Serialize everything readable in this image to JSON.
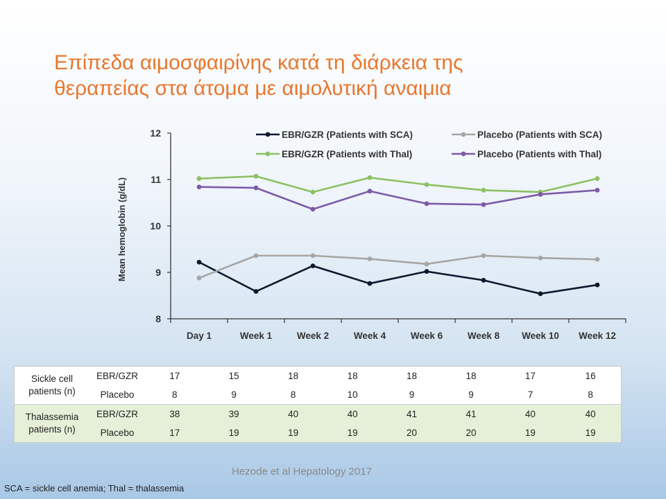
{
  "title_line1": "Επίπεδα αιμοσφαιρίνης κατά τη διάρκεια της",
  "title_line2": "θεραπείας στα άτομα με αιμολυτική αναιμια",
  "chart_data": {
    "type": "line",
    "ylabel": "Mean hemoglobin (g/dL)",
    "xlabel": "",
    "ylim": [
      8,
      12
    ],
    "yticks": [
      "8",
      "9",
      "10",
      "11",
      "12"
    ],
    "categories": [
      "Day 1",
      "Week 1",
      "Week 2",
      "Week 4",
      "Week 6",
      "Week 8",
      "Week 10",
      "Week 12"
    ],
    "legend_position": "top",
    "series": [
      {
        "name": "EBR/GZR (Patients with SCA)",
        "color": "#0d1a2e",
        "values": [
          9.22,
          8.59,
          9.14,
          8.76,
          9.02,
          8.83,
          8.54,
          8.73
        ]
      },
      {
        "name": "Placebo (Patients with SCA)",
        "color": "#a6a6a6",
        "values": [
          8.88,
          9.36,
          9.36,
          9.29,
          9.18,
          9.36,
          9.31,
          9.28
        ]
      },
      {
        "name": "EBR/GZR (Patients with Thal)",
        "color": "#8dc063",
        "values": [
          11.02,
          11.07,
          10.73,
          11.04,
          10.89,
          10.77,
          10.73,
          11.02
        ]
      },
      {
        "name": "Placebo (Patients with Thal)",
        "color": "#7e5aa8",
        "values": [
          10.84,
          10.82,
          10.36,
          10.75,
          10.48,
          10.46,
          10.68,
          10.77
        ]
      }
    ]
  },
  "table": {
    "groups": [
      {
        "label": "Sickle cell patients (n)",
        "rows": [
          {
            "treatment": "EBR/GZR",
            "values": [
              "17",
              "15",
              "18",
              "18",
              "18",
              "18",
              "17",
              "16"
            ]
          },
          {
            "treatment": "Placebo",
            "values": [
              "8",
              "9",
              "8",
              "10",
              "9",
              "9",
              "7",
              "8"
            ]
          }
        ]
      },
      {
        "label": "Thalassemia patients (n)",
        "rows": [
          {
            "treatment": "EBR/GZR",
            "values": [
              "38",
              "39",
              "40",
              "40",
              "41",
              "41",
              "40",
              "40"
            ]
          },
          {
            "treatment": "Placebo",
            "values": [
              "17",
              "19",
              "19",
              "19",
              "20",
              "20",
              "19",
              "19"
            ]
          }
        ]
      }
    ]
  },
  "citation": "Hezode et al Hepatology 2017",
  "footnote": "SCA = sickle cell anemia; Thal = thalassemia"
}
